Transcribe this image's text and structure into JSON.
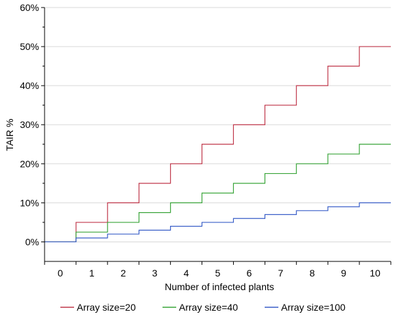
{
  "chart_data": {
    "type": "line",
    "step": true,
    "xlabel": "Number of infected plants",
    "ylabel": "TAIR %",
    "categories": [
      "0",
      "1",
      "2",
      "3",
      "4",
      "5",
      "6",
      "7",
      "8",
      "9",
      "10"
    ],
    "y_ticks": [
      "0%",
      "10%",
      "20%",
      "30%",
      "40%",
      "50%",
      "60%"
    ],
    "ylim": [
      -5,
      60
    ],
    "grid": true,
    "legend_position": "bottom",
    "series": [
      {
        "name": "Array size=20",
        "color": "#c0384b",
        "values": [
          0,
          5,
          10,
          15,
          20,
          25,
          30,
          35,
          40,
          45,
          50
        ]
      },
      {
        "name": "Array size=40",
        "color": "#3aa53a",
        "values": [
          0,
          2.5,
          5,
          7.5,
          10,
          12.5,
          15,
          17.5,
          20,
          22.5,
          25
        ]
      },
      {
        "name": "Array size=100",
        "color": "#3a5fc8",
        "values": [
          0,
          1,
          2,
          3,
          4,
          5,
          6,
          7,
          8,
          9,
          10
        ]
      }
    ]
  }
}
